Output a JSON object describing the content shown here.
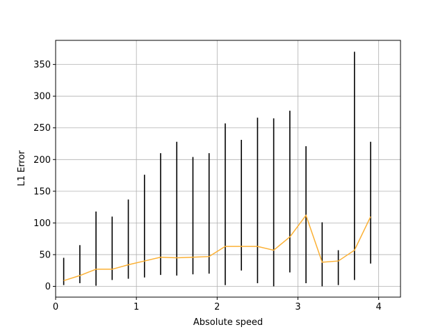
{
  "chart_data": {
    "type": "line",
    "title": "",
    "xlabel": "Absolute speed",
    "ylabel": "L1 Error",
    "xlim": [
      0,
      4.27
    ],
    "ylim": [
      -17,
      388
    ],
    "xticks": [
      0,
      1,
      2,
      3,
      4
    ],
    "yticks": [
      0,
      50,
      100,
      150,
      200,
      250,
      300,
      350
    ],
    "grid": true,
    "mean_line": {
      "color": "#fbb034",
      "x": [
        0.1,
        0.3,
        0.5,
        0.7,
        0.9,
        1.1,
        1.3,
        1.5,
        1.7,
        1.9,
        2.1,
        2.3,
        2.5,
        2.7,
        2.9,
        3.1,
        3.3,
        3.5,
        3.7,
        3.9
      ],
      "y": [
        9,
        17,
        27,
        27,
        34,
        40,
        46,
        45,
        46,
        47,
        63,
        63,
        63,
        57,
        78,
        112,
        38,
        40,
        57,
        110
      ]
    },
    "spread_bars": {
      "color": "#000000",
      "x": [
        0.1,
        0.3,
        0.5,
        0.7,
        0.9,
        1.1,
        1.3,
        1.5,
        1.7,
        1.9,
        2.1,
        2.3,
        2.5,
        2.7,
        2.9,
        3.1,
        3.3,
        3.5,
        3.7,
        3.9
      ],
      "min": [
        2,
        5,
        1,
        10,
        12,
        14,
        18,
        17,
        19,
        20,
        2,
        25,
        5,
        0,
        22,
        5,
        0,
        2,
        10,
        36
      ],
      "max": [
        45,
        65,
        118,
        110,
        137,
        176,
        210,
        228,
        204,
        210,
        257,
        231,
        266,
        265,
        277,
        221,
        101,
        57,
        370,
        228
      ]
    }
  }
}
